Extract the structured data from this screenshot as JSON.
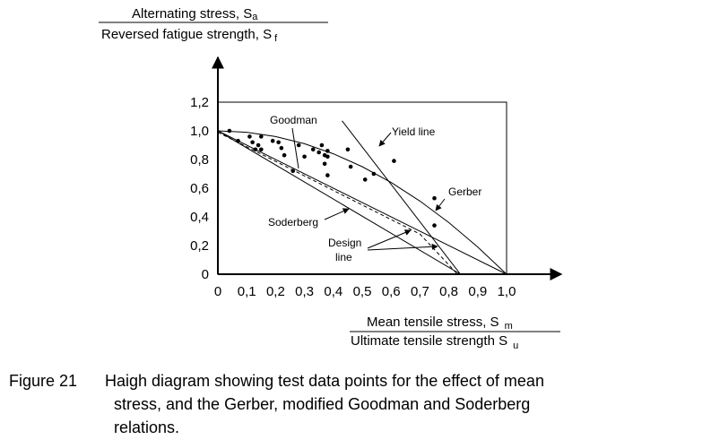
{
  "chart_data": {
    "type": "line",
    "y_axis_label": {
      "numerator": "Alternating stress, S",
      "numerator_sub": "a",
      "denominator": "Reversed fatigue strength, S",
      "denominator_sub": "f"
    },
    "x_axis_label": {
      "numerator": "Mean tensile stress, S",
      "numerator_sub": "m",
      "denominator": "Ultimate tensile strength S",
      "denominator_sub": "u"
    },
    "xlim": [
      0,
      1.0
    ],
    "ylim": [
      0,
      1.2
    ],
    "x_ticks": [
      {
        "value": 0,
        "label": "0"
      },
      {
        "value": 0.1,
        "label": "0,1"
      },
      {
        "value": 0.2,
        "label": "0,2"
      },
      {
        "value": 0.3,
        "label": "0,3"
      },
      {
        "value": 0.4,
        "label": "0,4"
      },
      {
        "value": 0.5,
        "label": "0,5"
      },
      {
        "value": 0.6,
        "label": "0,6"
      },
      {
        "value": 0.7,
        "label": "0,7"
      },
      {
        "value": 0.8,
        "label": "0,8"
      },
      {
        "value": 0.9,
        "label": "0,9"
      },
      {
        "value": 1.0,
        "label": "1,0"
      }
    ],
    "y_ticks": [
      {
        "value": 0,
        "label": "0"
      },
      {
        "value": 0.2,
        "label": "0,2"
      },
      {
        "value": 0.4,
        "label": "0,4"
      },
      {
        "value": 0.6,
        "label": "0,6"
      },
      {
        "value": 0.8,
        "label": "0,8"
      },
      {
        "value": 1.0,
        "label": "1,0"
      },
      {
        "value": 1.2,
        "label": "1,2"
      }
    ],
    "grid": false,
    "curves": [
      {
        "id": "gerber",
        "style": "solid",
        "points": [
          [
            0,
            1
          ],
          [
            0.1,
            0.99
          ],
          [
            0.2,
            0.96
          ],
          [
            0.3,
            0.91
          ],
          [
            0.4,
            0.84
          ],
          [
            0.5,
            0.75
          ],
          [
            0.6,
            0.64
          ],
          [
            0.7,
            0.51
          ],
          [
            0.8,
            0.36
          ],
          [
            0.9,
            0.19
          ],
          [
            1.0,
            0
          ]
        ]
      },
      {
        "id": "goodman",
        "style": "solid",
        "points": [
          [
            0,
            1
          ],
          [
            1.0,
            0
          ]
        ]
      },
      {
        "id": "soderberg",
        "style": "solid",
        "points": [
          [
            0,
            1
          ],
          [
            0.84,
            0
          ]
        ]
      },
      {
        "id": "yield",
        "style": "solid",
        "points": [
          [
            0.43,
            1.07
          ],
          [
            0.84,
            0
          ]
        ]
      },
      {
        "id": "design",
        "style": "dashed",
        "points": [
          [
            0,
            0.99
          ],
          [
            0.7,
            0.28
          ],
          [
            0.83,
            0
          ]
        ]
      }
    ],
    "test_points": [
      [
        0.04,
        1.0
      ],
      [
        0.07,
        0.93
      ],
      [
        0.11,
        0.96
      ],
      [
        0.12,
        0.92
      ],
      [
        0.13,
        0.87
      ],
      [
        0.14,
        0.9
      ],
      [
        0.15,
        0.96
      ],
      [
        0.15,
        0.87
      ],
      [
        0.19,
        0.93
      ],
      [
        0.21,
        0.92
      ],
      [
        0.22,
        0.88
      ],
      [
        0.23,
        0.83
      ],
      [
        0.26,
        0.72
      ],
      [
        0.28,
        0.9
      ],
      [
        0.3,
        0.82
      ],
      [
        0.33,
        0.87
      ],
      [
        0.35,
        0.85
      ],
      [
        0.36,
        0.9
      ],
      [
        0.37,
        0.83
      ],
      [
        0.37,
        0.77
      ],
      [
        0.38,
        0.86
      ],
      [
        0.38,
        0.82
      ],
      [
        0.38,
        0.69
      ],
      [
        0.45,
        0.87
      ],
      [
        0.46,
        0.75
      ],
      [
        0.51,
        0.66
      ],
      [
        0.54,
        0.7
      ],
      [
        0.61,
        0.79
      ],
      [
        0.75,
        0.53
      ],
      [
        0.75,
        0.34
      ]
    ],
    "annotations": [
      {
        "id": "goodman",
        "text": "Goodman"
      },
      {
        "id": "yield",
        "text": "Yield line"
      },
      {
        "id": "gerber",
        "text": "Gerber"
      },
      {
        "id": "soderberg",
        "text": "Soderberg"
      },
      {
        "id": "design1",
        "text": "Design"
      },
      {
        "id": "design2",
        "text": "line"
      }
    ]
  },
  "caption": {
    "number": "Figure 21",
    "line1": "Haigh diagram showing test data points for the effect of mean",
    "line2": "stress, and the Gerber, modified Goodman and Soderberg",
    "line3": "relations."
  }
}
